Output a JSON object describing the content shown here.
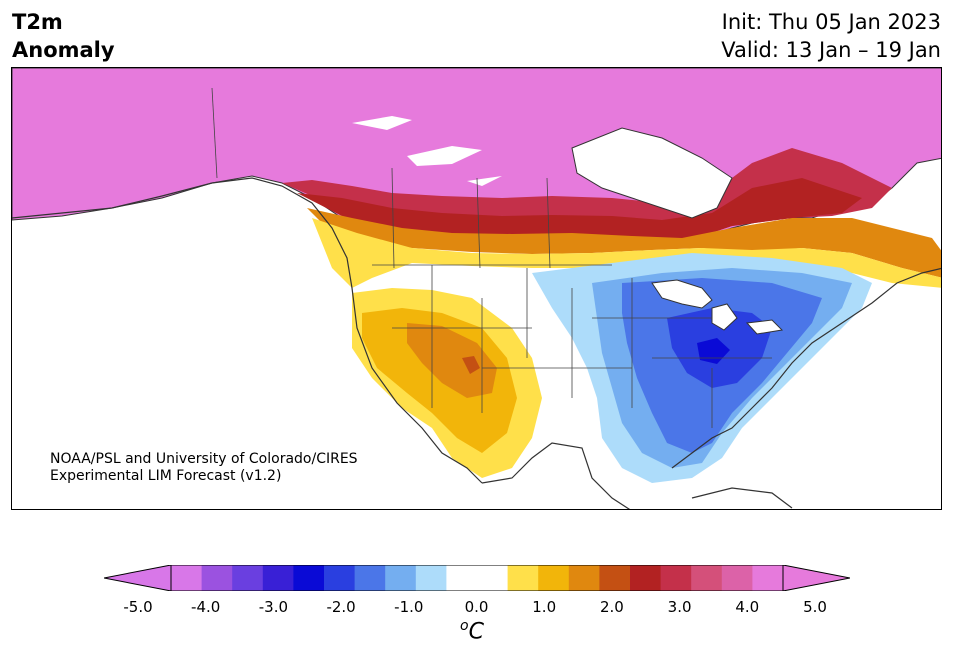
{
  "title": {
    "variable": "T2m",
    "subtitle": "Anomaly",
    "init": "Init: Thu 05 Jan 2023",
    "valid": "Valid: 13 Jan – 19 Jan"
  },
  "credit": {
    "line1": "NOAA/PSL and University of Colorado/CIRES",
    "line2": "Experimental LIM Forecast (v1.2)"
  },
  "colorbar": {
    "unit_base": "C",
    "unit_sup": "o",
    "ticks": [
      "-5.0",
      "-4.0",
      "-3.0",
      "-2.0",
      "-1.0",
      "0.0",
      "1.0",
      "2.0",
      "3.0",
      "4.0",
      "5.0"
    ],
    "colors": [
      "#d877e8",
      "#9b52e0",
      "#6a3fe0",
      "#3920d6",
      "#0a0ad6",
      "#2a3fe0",
      "#4b76e8",
      "#74aef0",
      "#addcfa",
      "#ffffff",
      "#ffffff",
      "#ffe04a",
      "#f2b50a",
      "#e0880f",
      "#c45013",
      "#b22222",
      "#c4304a",
      "#d4507a",
      "#dc62a8",
      "#e67adc"
    ],
    "low_extend": "#d877e8",
    "high_extend": "#e67adc"
  },
  "map": {
    "region": "North America",
    "ocean_color": "#ffffff",
    "land_border_color": "#333333"
  }
}
